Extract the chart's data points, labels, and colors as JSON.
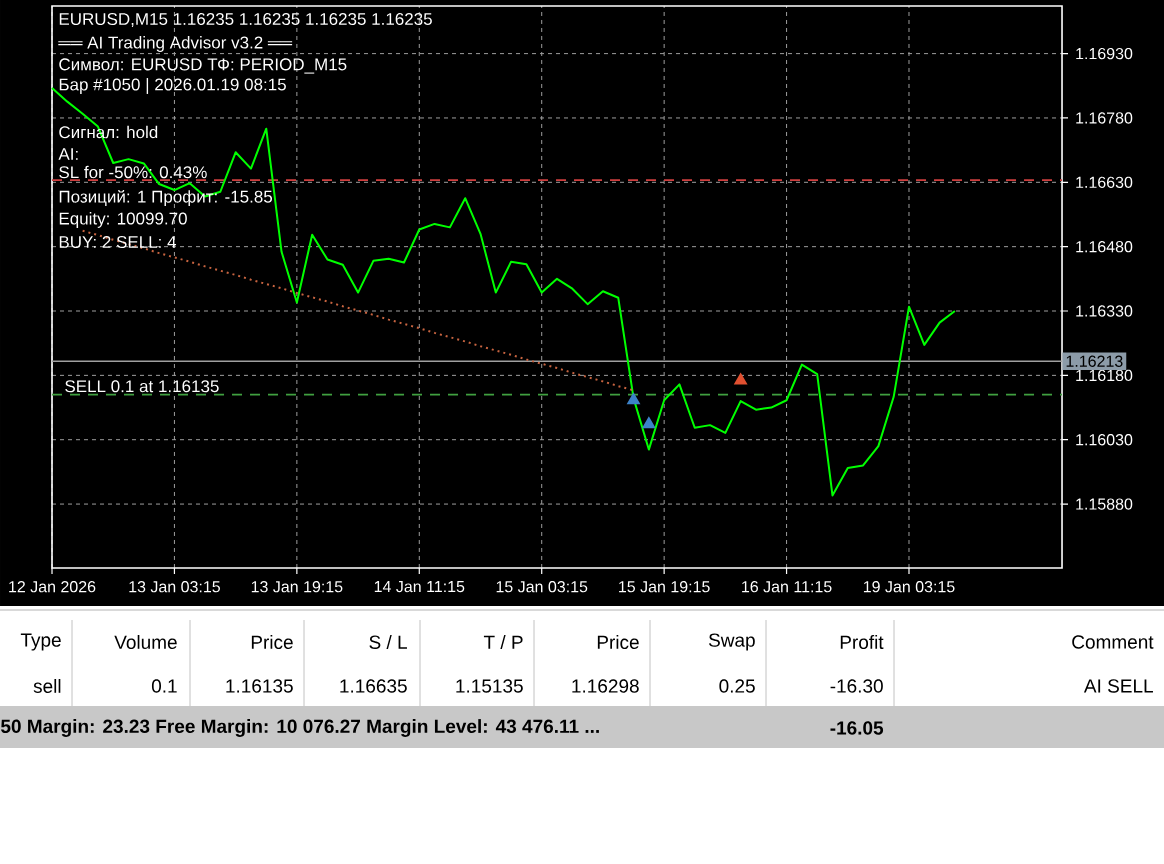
{
  "chart_data": {
    "type": "line",
    "title": "EURUSD,M15  1.16235 1.16235 1.16235 1.16235",
    "categories": [
      "12 Jan 2026",
      null,
      null,
      null,
      null,
      null,
      null,
      null,
      "13 Jan 03:15",
      null,
      null,
      null,
      null,
      null,
      null,
      null,
      "13 Jan 19:15",
      null,
      null,
      null,
      null,
      null,
      null,
      null,
      "14 Jan 11:15",
      null,
      null,
      null,
      null,
      null,
      null,
      null,
      "15 Jan 03:15",
      null,
      null,
      null,
      null,
      null,
      null,
      null,
      "15 Jan 19:15",
      null,
      null,
      null,
      null,
      null,
      null,
      null,
      "16 Jan 11:15",
      null,
      null,
      null,
      null,
      null,
      null,
      null,
      "19 Jan 03:15",
      null,
      null,
      null,
      null,
      null,
      null,
      null,
      null,
      null,
      null
    ],
    "ylim": [
      1.15731,
      1.17041
    ],
    "yticks": [
      {
        "value": 1.1588,
        "label": "1.15880"
      },
      {
        "value": 1.1603,
        "label": "1.16030"
      },
      {
        "value": 1.1618,
        "label": "1.16180"
      },
      {
        "value": 1.1633,
        "label": "1.16330"
      },
      {
        "value": 1.1648,
        "label": "1.16480"
      },
      {
        "value": 1.1663,
        "label": "1.16630"
      },
      {
        "value": 1.1678,
        "label": "1.16780"
      },
      {
        "value": 1.1693,
        "label": "1.16930"
      }
    ],
    "grid": true,
    "series": [
      {
        "color": "#00ff00",
        "values": [
          1.1685,
          1.16818,
          1.1679,
          1.1676,
          1.16675,
          1.16684,
          1.16674,
          1.16626,
          1.16612,
          1.16628,
          1.16597,
          1.16608,
          1.167,
          1.16662,
          1.16755,
          1.16468,
          1.1635,
          1.16508,
          1.1645,
          1.16438,
          1.16373,
          1.16447,
          1.16452,
          1.16443,
          1.1652,
          1.16533,
          1.16525,
          1.16593,
          1.1651,
          1.16373,
          1.16445,
          1.16439,
          1.16373,
          1.16405,
          1.16382,
          1.16346,
          1.16376,
          1.16361,
          1.16127,
          1.16007,
          1.16122,
          1.16159,
          1.16058,
          1.16064,
          1.16046,
          1.1612,
          1.161,
          1.16105,
          1.16122,
          1.16205,
          1.16183,
          1.159,
          1.15964,
          1.1597,
          1.16015,
          1.1613,
          1.1634,
          1.16251,
          1.16303,
          1.1633,
          null,
          null,
          null,
          null,
          null,
          null,
          null
        ]
      },
      {
        "type": "line",
        "color": "#c86440",
        "line_style": "dotted",
        "values": [
          null,
          null,
          1.16517,
          1.16507,
          1.16496,
          1.16486,
          1.16476,
          1.16465,
          1.16455,
          1.16445,
          1.16434,
          1.16424,
          1.16414,
          1.16403,
          1.16393,
          1.16383,
          1.16372,
          1.16362,
          1.16352,
          1.16341,
          1.16331,
          1.16321,
          1.1631,
          1.163,
          1.1629,
          1.16279,
          1.16269,
          1.16259,
          1.16248,
          1.16238,
          1.16228,
          1.16217,
          1.16207,
          1.16197,
          1.16186,
          1.16176,
          1.16166,
          1.16155,
          1.16145,
          null,
          null,
          null,
          null,
          null,
          null,
          null,
          null,
          null,
          null,
          null,
          null,
          null,
          null,
          null,
          null,
          null,
          null,
          null,
          null,
          null,
          null,
          null,
          null,
          null,
          null,
          null,
          null
        ]
      },
      {
        "type": "scatter",
        "color": "#3c82c8",
        "marker": "triangle",
        "values": [
          null,
          null,
          null,
          null,
          null,
          null,
          null,
          null,
          null,
          null,
          null,
          null,
          null,
          null,
          null,
          null,
          null,
          null,
          null,
          null,
          null,
          null,
          null,
          null,
          null,
          null,
          null,
          null,
          null,
          null,
          null,
          null,
          null,
          null,
          null,
          null,
          null,
          null,
          1.16122,
          1.16066,
          null,
          null,
          null,
          null,
          null,
          null,
          null,
          null,
          null,
          null,
          null,
          null,
          null,
          null,
          null,
          null,
          null,
          null,
          null,
          null,
          null,
          null,
          null,
          null,
          null,
          null,
          null
        ]
      },
      {
        "type": "scatter",
        "color": "#e05030",
        "marker": "triangle",
        "values": [
          null,
          null,
          null,
          null,
          null,
          null,
          null,
          null,
          null,
          null,
          null,
          null,
          null,
          null,
          null,
          null,
          null,
          null,
          null,
          null,
          null,
          null,
          null,
          null,
          null,
          null,
          null,
          null,
          null,
          null,
          null,
          null,
          null,
          null,
          null,
          null,
          null,
          null,
          null,
          null,
          null,
          null,
          null,
          null,
          null,
          1.16168,
          null,
          null,
          null,
          null,
          null,
          null,
          null,
          null,
          null,
          null,
          null,
          null,
          null,
          null,
          null,
          null,
          null,
          null,
          null,
          null,
          null
        ]
      }
    ],
    "ref_lines": [
      {
        "axis": "y",
        "value": 1.16635,
        "color": "#d04040",
        "line_style": "dashed"
      },
      {
        "axis": "y",
        "value": 1.16135,
        "color": "#40a040",
        "line_style": "dashed",
        "label": "SELL 0.1 at 1.16135"
      },
      {
        "axis": "y",
        "value": 1.16213,
        "color": "#a0a0a0",
        "line_style": "solid",
        "label": "1.16213"
      }
    ],
    "annotations": [
      "══ AI Trading Advisor v3.2 ══",
      "Символ: EURUSD  ТФ: PERIOD_M15",
      "Бар #1050  |  2026.01.19 08:15",
      "Сигнал: hold",
      "AI:",
      "SL for -50%: 0.43%",
      "Позиций: 1  Профит: -15.85",
      "Equity:  10099.70",
      "BUY: 2  SELL: 4",
      "Type",
      "Volume",
      "Price",
      "S / L",
      "T / P",
      "Price",
      "Swap",
      "Profit",
      "Comment",
      "sell",
      "0.1",
      "1.16135",
      "1.16635",
      "1.15135",
      "1.16298",
      "0.25",
      "-16.30",
      "AI SELL",
      "50  Margin: 23.23  Free Margin: 10 076.27  Margin Level: 43 476.11 ...",
      "-16.05"
    ]
  }
}
